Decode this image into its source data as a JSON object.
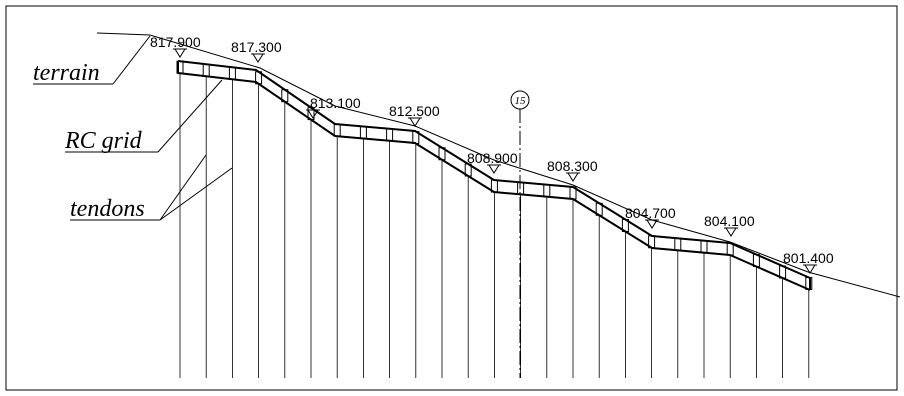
{
  "labels": {
    "terrain": "terrain",
    "rc_grid": "RC grid",
    "tendons": "tendons"
  },
  "axis": "15",
  "elevations": [
    "817.900",
    "817.300",
    "813.100",
    "812.500",
    "808.900",
    "808.300",
    "804.700",
    "804.100",
    "801.400"
  ]
}
